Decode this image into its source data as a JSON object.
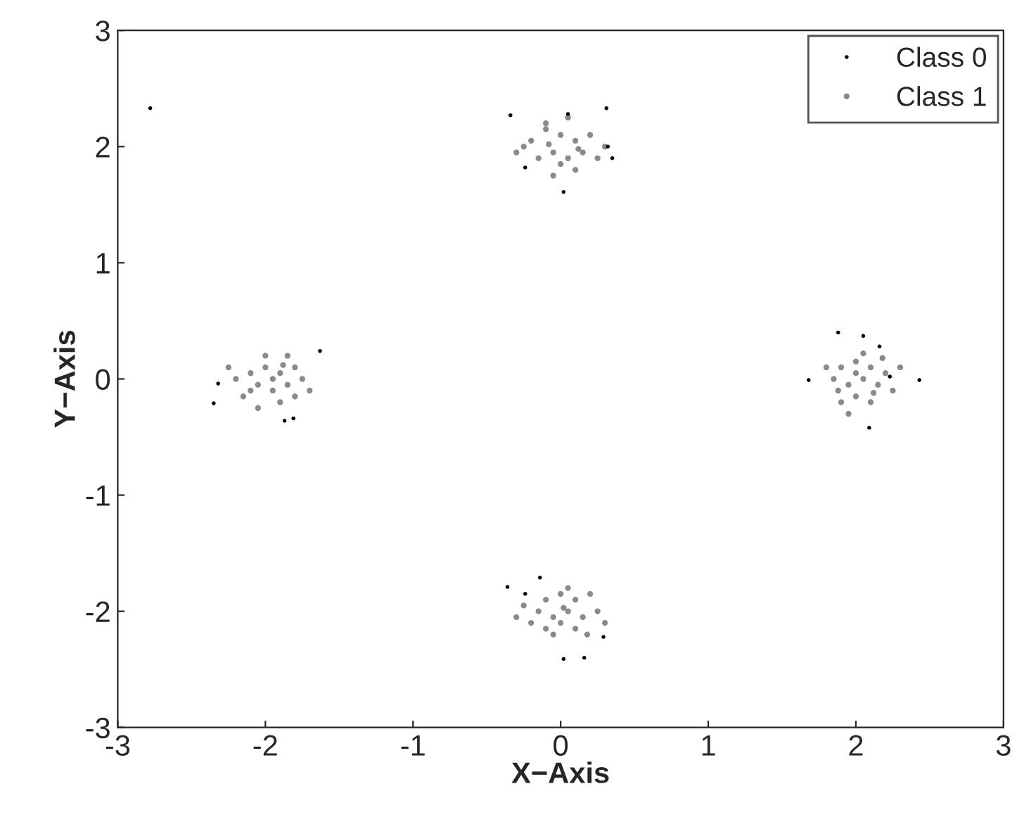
{
  "chart_data": {
    "type": "scatter",
    "xlabel": "X−Axis",
    "ylabel": "Y−Axis",
    "xlim": [
      -3,
      3
    ],
    "ylim": [
      -3,
      3
    ],
    "xticks": [
      -3,
      -2,
      -1,
      0,
      1,
      2,
      3
    ],
    "yticks": [
      -3,
      -2,
      -1,
      0,
      1,
      2,
      3
    ],
    "grid": false,
    "legend": "top right",
    "marker": "circle",
    "series": [
      {
        "name": "Class 0",
        "color": "#000000",
        "x": [
          -0.34,
          0.05,
          0.31,
          0.35,
          0.32,
          -0.24,
          0.02,
          -2.78,
          -1.63,
          -2.32,
          -2.35,
          -1.81,
          -1.87,
          1.88,
          2.05,
          2.16,
          2.23,
          2.43,
          1.68,
          2.09,
          -0.14,
          -0.36,
          0.02,
          0.16,
          0.29,
          -0.24
        ],
        "values": [
          2.27,
          2.28,
          2.33,
          1.9,
          2.0,
          1.82,
          1.61,
          2.33,
          0.24,
          -0.04,
          -0.21,
          -0.34,
          -0.36,
          0.4,
          0.37,
          0.28,
          0.02,
          -0.01,
          -0.01,
          -0.42,
          -1.71,
          -1.79,
          -2.41,
          -2.4,
          -2.22,
          -1.85
        ]
      },
      {
        "name": "Class 1",
        "color": "#8a8a8a",
        "x": [
          -0.2,
          -0.1,
          0.0,
          0.1,
          0.15,
          0.05,
          -0.05,
          -0.15,
          0.0,
          0.1,
          -0.25,
          0.2,
          -0.1,
          0.25,
          0.05,
          -0.05,
          0.3,
          -0.3,
          0.12,
          -0.08,
          -2.1,
          -2.0,
          -1.9,
          -1.85,
          -1.95,
          -2.05,
          -2.2,
          -1.8,
          -1.75,
          -2.15,
          -1.9,
          -2.0,
          -1.85,
          -2.25,
          -1.7,
          -2.05,
          -1.95,
          -1.8,
          -2.1,
          -1.88,
          1.9,
          2.0,
          2.1,
          2.05,
          1.95,
          2.15,
          2.2,
          1.85,
          2.0,
          2.1,
          1.9,
          2.25,
          1.8,
          2.05,
          1.95,
          2.3,
          2.0,
          2.12,
          1.88,
          2.18,
          -0.1,
          0.0,
          0.1,
          0.05,
          -0.05,
          0.15,
          -0.15,
          0.0,
          0.1,
          -0.1,
          0.25,
          -0.25,
          0.2,
          -0.2,
          0.3,
          0.05,
          -0.05,
          0.18,
          -0.3,
          0.02
        ],
        "values": [
          2.05,
          2.15,
          2.1,
          2.05,
          1.95,
          1.9,
          1.95,
          1.9,
          1.85,
          1.8,
          2.0,
          2.1,
          2.2,
          1.9,
          2.25,
          1.75,
          2.0,
          1.95,
          1.98,
          2.02,
          0.05,
          0.1,
          0.05,
          -0.05,
          -0.1,
          -0.05,
          0.0,
          0.1,
          0.0,
          -0.15,
          -0.2,
          0.2,
          0.2,
          0.1,
          -0.1,
          -0.25,
          0.0,
          -0.15,
          -0.1,
          0.12,
          0.1,
          0.15,
          0.1,
          0.0,
          -0.05,
          -0.05,
          0.05,
          0.0,
          -0.15,
          -0.2,
          -0.2,
          -0.1,
          0.1,
          0.22,
          -0.3,
          0.1,
          0.05,
          -0.12,
          -0.1,
          0.18,
          -1.9,
          -1.85,
          -1.9,
          -2.0,
          -2.05,
          -2.05,
          -2.0,
          -2.1,
          -2.15,
          -2.15,
          -2.0,
          -1.95,
          -1.85,
          -2.1,
          -2.1,
          -1.8,
          -2.2,
          -2.2,
          -2.05,
          -1.97
        ]
      }
    ]
  }
}
